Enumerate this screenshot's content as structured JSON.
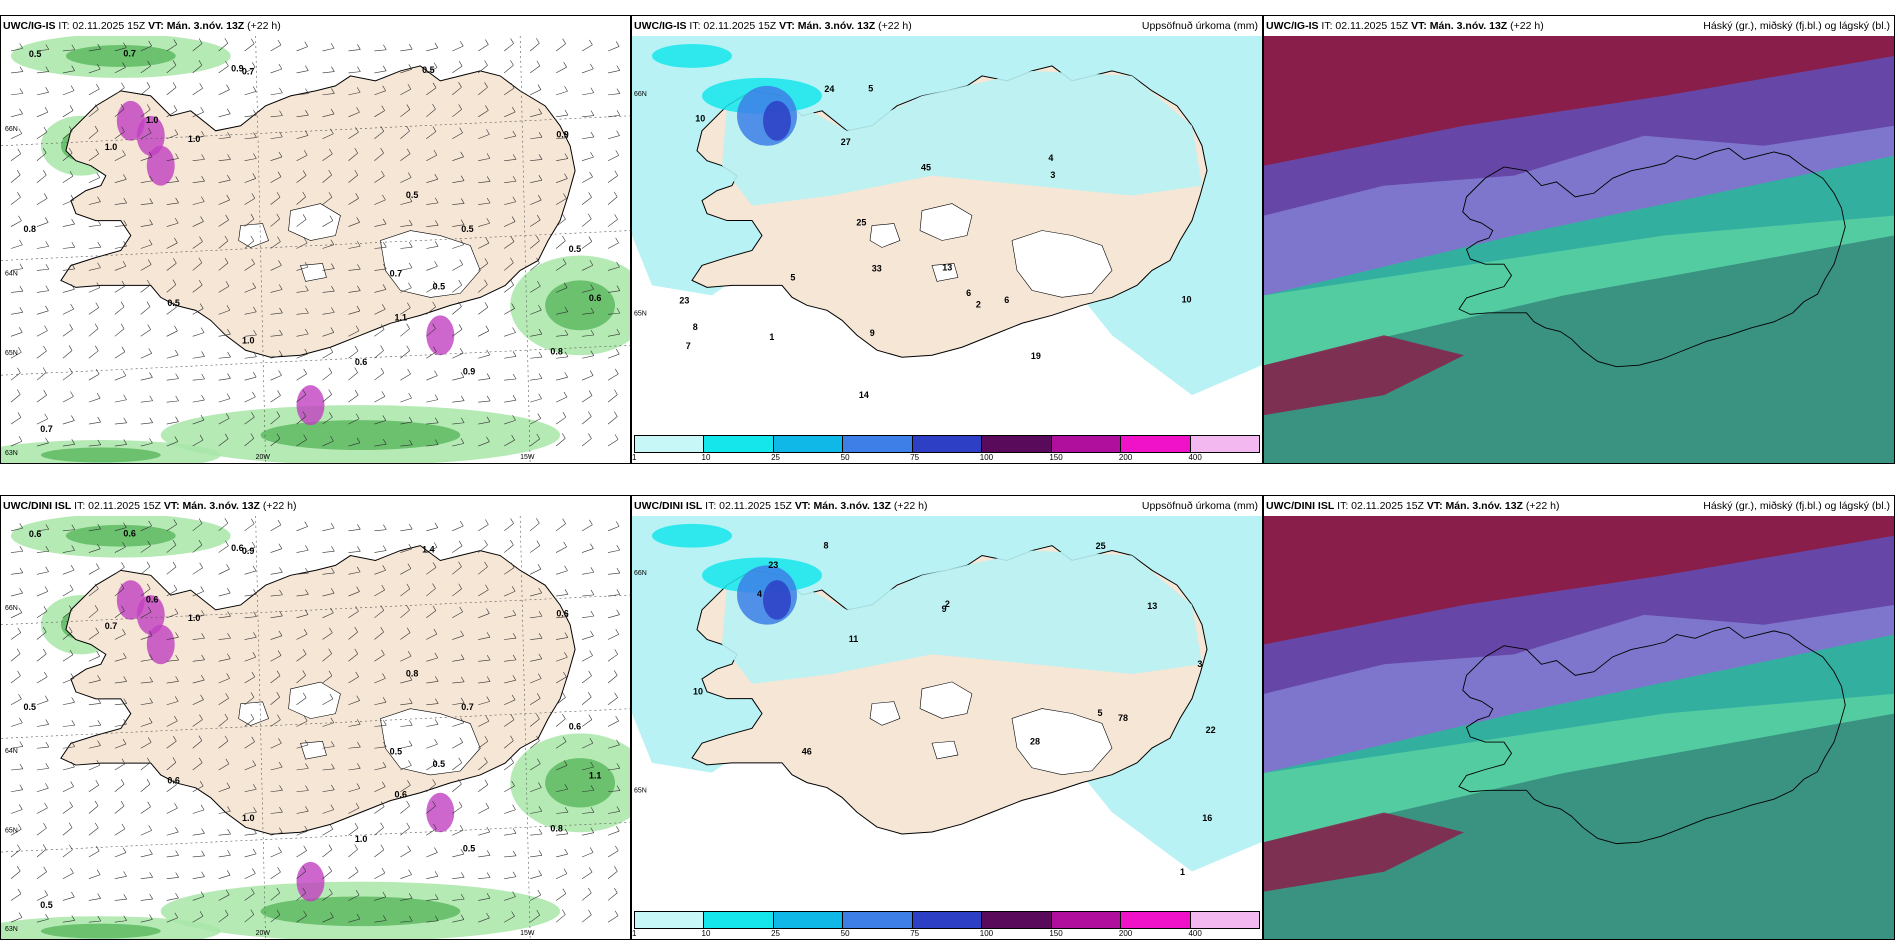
{
  "panels": [
    {
      "id": "ig-wind",
      "model": "UWC/IG-IS",
      "it": "IT: 02.11.2025 15Z",
      "vt": "VT: Mán. 3.nóv. 13Z",
      "lead": "(+22 h)",
      "right_title": "",
      "axis_labels": [
        "66N",
        "65N",
        "64N",
        "63N",
        "20W",
        "15W"
      ],
      "values": [
        "0.9",
        "0.5",
        "0.8",
        "1.0",
        "0.5",
        "0.9",
        "0.5",
        "0.7",
        "0.5",
        "0.8",
        "1.0",
        "0.9",
        "0.5",
        "0.7",
        "0.6",
        "0.7",
        "0.5",
        "1.0",
        "0.6",
        "0.5",
        "0.7",
        "1.1",
        "1.0"
      ]
    },
    {
      "id": "ig-precip",
      "model": "UWC/IG-IS",
      "it": "IT: 02.11.2025 15Z",
      "vt": "VT: Mán. 3.nóv. 13Z",
      "lead": "(+22 h)",
      "right_title": "Uppsöfnuð úrkoma (mm)",
      "axis_labels": [
        "66N",
        "65N"
      ],
      "values": [
        "10",
        "7",
        "6",
        "8",
        "5",
        "25",
        "33",
        "45",
        "23",
        "14",
        "19",
        "10",
        "27",
        "24",
        "9",
        "6",
        "4",
        "3",
        "2",
        "1",
        "5",
        "13"
      ]
    },
    {
      "id": "ig-cloud",
      "model": "UWC/IG-IS",
      "it": "IT: 02.11.2025 15Z",
      "vt": "VT: Mán. 3.nóv. 13Z",
      "lead": "(+22 h)",
      "right_title": "Háský (gr.), miðský (fj.bl.) og lágský (bl.)",
      "values": []
    },
    {
      "id": "dini-wind",
      "model": "UWC/DINI ISL",
      "it": "IT: 02.11.2025 15Z",
      "vt": "VT: Mán. 3.nóv. 13Z",
      "lead": "(+22 h)",
      "right_title": "",
      "axis_labels": [
        "66N",
        "65N",
        "64N",
        "63N",
        "20W",
        "15W"
      ],
      "values": [
        "0.5",
        "0.6",
        "0.5",
        "0.7",
        "0.5",
        "0.6",
        "0.7",
        "0.9",
        "0.6",
        "0.8",
        "1.0",
        "0.6",
        "0.6",
        "0.5",
        "1.0",
        "0.6",
        "1.4",
        "0.6",
        "1.1",
        "0.8",
        "0.5",
        "0.6",
        "1.0"
      ]
    },
    {
      "id": "dini-precip",
      "model": "UWC/DINI ISL",
      "it": "IT: 02.11.2025 15Z",
      "vt": "VT: Mán. 3.nóv. 13Z",
      "lead": "(+22 h)",
      "right_title": "Uppsöfnuð úrkoma (mm)",
      "axis_labels": [
        "66N",
        "65N"
      ],
      "values": [
        "13",
        "8",
        "9",
        "3",
        "23",
        "46",
        "78",
        "22",
        "28",
        "25",
        "16",
        "10",
        "4",
        "2",
        "5",
        "11",
        "1"
      ]
    },
    {
      "id": "dini-cloud",
      "model": "UWC/DINI ISL",
      "it": "IT: 02.11.2025 15Z",
      "vt": "VT: Mán. 3.nóv. 13Z",
      "lead": "(+22 h)",
      "right_title": "Háský (gr.), miðský (fj.bl.) og lágský (bl.)",
      "values": []
    }
  ],
  "colorbar": {
    "labels": [
      "1",
      "10",
      "25",
      "50",
      "75",
      "100",
      "150",
      "200",
      "400"
    ],
    "colors": [
      "#c8f7f7",
      "#15e6ec",
      "#10b8e8",
      "#3d7fe6",
      "#2d3fc4",
      "#5a0a5a",
      "#b00f9e",
      "#f012c8",
      "#f4b8f0"
    ]
  },
  "colors": {
    "land": "#f6e6d6",
    "precip_light": "#b8f2f4",
    "sea_white": "#ffffff",
    "cloud_high": "#8a1e4a",
    "cloud_mid": "#5a55c8",
    "cloud_low": "#14c88c"
  }
}
